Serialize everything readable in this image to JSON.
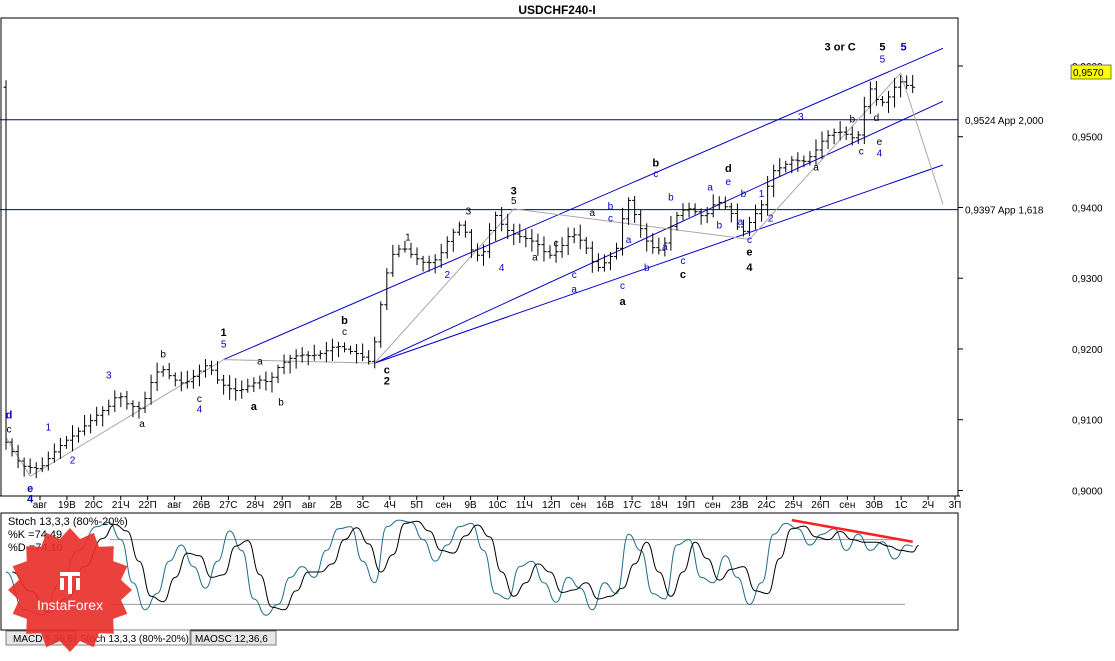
{
  "chart_data": [
    {
      "type": "candlestick",
      "title": "USDCHF240-I",
      "ylim": [
        0.8995,
        0.9665
      ],
      "y_ticks": [
        "0,9600",
        "0,9500",
        "0,9400",
        "0,9300",
        "0,9200",
        "0,9100",
        "0,9000"
      ],
      "y_tick_values": [
        0.96,
        0.95,
        0.94,
        0.93,
        0.92,
        0.91,
        0.9
      ],
      "x_ticks": [
        "авг",
        "19В",
        "20С",
        "21Ч",
        "22П",
        "авг",
        "26В",
        "27С",
        "28Ч",
        "29П",
        "авг",
        "2В",
        "3С",
        "4Ч",
        "5П",
        "сен",
        "9В",
        "10С",
        "11Ч",
        "12П",
        "сен",
        "16В",
        "17С",
        "18Ч",
        "19П",
        "сен",
        "23В",
        "24С",
        "25Ч",
        "26П",
        "сен",
        "30В",
        "1С",
        "2Ч",
        "3П"
      ],
      "x_tick_labels": [
        "авг",
        "19В",
        "20С",
        "21Ч",
        "22П",
        "авг",
        "26В",
        "27С",
        "28Ч",
        "29П",
        "авг",
        "2В",
        "3С",
        "4Ч",
        "5П",
        "сен",
        "9В",
        "10С",
        "11Ч",
        "12П",
        "сен",
        "16В",
        "17С",
        "18Ч",
        "19П",
        "сен",
        "23В",
        "24С",
        "25Ч",
        "26П",
        "сен",
        "30В",
        "1С",
        "2Ч",
        "3П"
      ],
      "current_price": "0,9570",
      "current_value": 0.957,
      "horizontal_levels": [
        {
          "value": 0.9524,
          "label": "0,9524 App 2,000"
        },
        {
          "value": 0.9397,
          "label": "0,9397 App 1,618"
        }
      ],
      "price_path": [
        [
          0,
          0.9075
        ],
        [
          3,
          0.9035
        ],
        [
          6,
          0.903
        ],
        [
          8,
          0.905
        ],
        [
          10,
          0.9068
        ],
        [
          12,
          0.908
        ],
        [
          14,
          0.9095
        ],
        [
          16,
          0.911
        ],
        [
          18,
          0.9122
        ],
        [
          19,
          0.914
        ],
        [
          20,
          0.9125
        ],
        [
          21,
          0.912
        ],
        [
          23,
          0.9115
        ],
        [
          24,
          0.9145
        ],
        [
          26,
          0.9175
        ],
        [
          28,
          0.9158
        ],
        [
          30,
          0.915
        ],
        [
          32,
          0.9165
        ],
        [
          34,
          0.918
        ],
        [
          35,
          0.916
        ],
        [
          37,
          0.9145
        ],
        [
          39,
          0.914
        ],
        [
          41,
          0.915
        ],
        [
          43,
          0.9158
        ],
        [
          44,
          0.915
        ],
        [
          45,
          0.917
        ],
        [
          47,
          0.9185
        ],
        [
          49,
          0.9192
        ],
        [
          51,
          0.919
        ],
        [
          53,
          0.9195
        ],
        [
          55,
          0.9205
        ],
        [
          57,
          0.9198
        ],
        [
          59,
          0.9192
        ],
        [
          60,
          0.9185
        ],
        [
          61,
          0.918
        ],
        [
          62,
          0.924
        ],
        [
          64,
          0.933
        ],
        [
          66,
          0.9345
        ],
        [
          68,
          0.933
        ],
        [
          70,
          0.932
        ],
        [
          72,
          0.9328
        ],
        [
          74,
          0.936
        ],
        [
          76,
          0.938
        ],
        [
          77,
          0.935
        ],
        [
          78,
          0.933
        ],
        [
          80,
          0.934
        ],
        [
          81,
          0.9395
        ],
        [
          83,
          0.937
        ],
        [
          85,
          0.936
        ],
        [
          87,
          0.9355
        ],
        [
          89,
          0.9345
        ],
        [
          90,
          0.933
        ],
        [
          92,
          0.934
        ],
        [
          94,
          0.9365
        ],
        [
          96,
          0.935
        ],
        [
          97,
          0.9335
        ],
        [
          98,
          0.9312
        ],
        [
          100,
          0.9325
        ],
        [
          102,
          0.9348
        ],
        [
          103,
          0.942
        ],
        [
          105,
          0.938
        ],
        [
          106,
          0.936
        ],
        [
          107,
          0.9345
        ],
        [
          109,
          0.9338
        ],
        [
          111,
          0.9385
        ],
        [
          113,
          0.94
        ],
        [
          115,
          0.9392
        ],
        [
          116,
          0.9385
        ],
        [
          118,
          0.941
        ],
        [
          120,
          0.9398
        ],
        [
          121,
          0.9385
        ],
        [
          122,
          0.936
        ],
        [
          124,
          0.9385
        ],
        [
          126,
          0.941
        ],
        [
          127,
          0.945
        ],
        [
          129,
          0.9458
        ],
        [
          131,
          0.947
        ],
        [
          132,
          0.9462
        ],
        [
          134,
          0.9475
        ],
        [
          136,
          0.95
        ],
        [
          138,
          0.9508
        ],
        [
          140,
          0.9502
        ],
        [
          141,
          0.9495
        ],
        [
          142,
          0.951
        ],
        [
          143,
          0.9575
        ],
        [
          145,
          0.9545
        ],
        [
          147,
          0.956
        ],
        [
          148,
          0.958
        ],
        [
          150,
          0.957
        ]
      ],
      "channels": [
        {
          "color": "#0000cc",
          "lines": [
            [
              [
                36,
                0.9185
              ],
              [
                155,
                0.9625
              ]
            ],
            [
              [
                61,
                0.918
              ],
              [
                155,
                0.955
              ]
            ],
            [
              [
                61,
                0.918
              ],
              [
                155,
                0.946
              ]
            ]
          ]
        }
      ],
      "wave_labels": [
        {
          "text": "d",
          "x": 0.5,
          "y": 0.9102,
          "color": "#0000cc",
          "bold": true
        },
        {
          "text": "c",
          "x": 0.5,
          "y": 0.9082,
          "color": "#000000"
        },
        {
          "text": "e",
          "x": 4,
          "y": 0.8998,
          "color": "#0000cc",
          "bold": true
        },
        {
          "text": "4",
          "x": 4,
          "y": 0.8983,
          "color": "#0000cc",
          "bold": true
        },
        {
          "text": "1",
          "x": 7,
          "y": 0.9085,
          "color": "#0000cc"
        },
        {
          "text": "2",
          "x": 11,
          "y": 0.9038,
          "color": "#0000cc"
        },
        {
          "text": "3",
          "x": 17,
          "y": 0.9158,
          "color": "#0000cc"
        },
        {
          "text": "a",
          "x": 22.5,
          "y": 0.909,
          "color": "#000000"
        },
        {
          "text": "b",
          "x": 26,
          "y": 0.9188,
          "color": "#000000"
        },
        {
          "text": "c",
          "x": 32,
          "y": 0.9125,
          "color": "#000000"
        },
        {
          "text": "4",
          "x": 32,
          "y": 0.911,
          "color": "#0000cc"
        },
        {
          "text": "1",
          "x": 36,
          "y": 0.9218,
          "color": "#000000",
          "bold": true
        },
        {
          "text": "5",
          "x": 36,
          "y": 0.9202,
          "color": "#0000cc"
        },
        {
          "text": "a",
          "x": 42,
          "y": 0.9178,
          "color": "#000000"
        },
        {
          "text": "a",
          "x": 41,
          "y": 0.9114,
          "color": "#000000",
          "bold": true
        },
        {
          "text": "b",
          "x": 45.5,
          "y": 0.912,
          "color": "#000000"
        },
        {
          "text": "b",
          "x": 56,
          "y": 0.9235,
          "color": "#000000",
          "bold": true
        },
        {
          "text": "c",
          "x": 56,
          "y": 0.922,
          "color": "#000000"
        },
        {
          "text": "c",
          "x": 63,
          "y": 0.9165,
          "color": "#000000",
          "bold": true
        },
        {
          "text": "2",
          "x": 63,
          "y": 0.915,
          "color": "#000000",
          "bold": true
        },
        {
          "text": "1",
          "x": 66.5,
          "y": 0.9353,
          "color": "#000000"
        },
        {
          "text": "2",
          "x": 73,
          "y": 0.93,
          "color": "#0000cc"
        },
        {
          "text": "3",
          "x": 76.5,
          "y": 0.939,
          "color": "#000000"
        },
        {
          "text": "4",
          "x": 82,
          "y": 0.931,
          "color": "#0000cc"
        },
        {
          "text": "3",
          "x": 84,
          "y": 0.9418,
          "color": "#000000",
          "bold": true
        },
        {
          "text": "5",
          "x": 84,
          "y": 0.9405,
          "color": "#000000"
        },
        {
          "text": "a",
          "x": 87.5,
          "y": 0.9325,
          "color": "#000000"
        },
        {
          "text": "c",
          "x": 91,
          "y": 0.9345,
          "color": "#000000"
        },
        {
          "text": "a",
          "x": 97,
          "y": 0.9388,
          "color": "#000000"
        },
        {
          "text": "c",
          "x": 94,
          "y": 0.93,
          "color": "#0000cc"
        },
        {
          "text": "a",
          "x": 94,
          "y": 0.928,
          "color": "#0000cc"
        },
        {
          "text": "b",
          "x": 100,
          "y": 0.9397,
          "color": "#0000cc"
        },
        {
          "text": "c",
          "x": 100,
          "y": 0.938,
          "color": "#0000cc"
        },
        {
          "text": "c",
          "x": 102,
          "y": 0.9285,
          "color": "#0000cc"
        },
        {
          "text": "a",
          "x": 102,
          "y": 0.9262,
          "color": "#000000",
          "bold": true
        },
        {
          "text": "a",
          "x": 103,
          "y": 0.935,
          "color": "#0000cc"
        },
        {
          "text": "b",
          "x": 106,
          "y": 0.931,
          "color": "#0000cc"
        },
        {
          "text": "b",
          "x": 107.5,
          "y": 0.9458,
          "color": "#000000",
          "bold": true
        },
        {
          "text": "c",
          "x": 107.5,
          "y": 0.9443,
          "color": "#0000cc"
        },
        {
          "text": "b",
          "x": 110,
          "y": 0.941,
          "color": "#0000cc"
        },
        {
          "text": "a",
          "x": 109,
          "y": 0.934,
          "color": "#0000cc"
        },
        {
          "text": "c",
          "x": 112,
          "y": 0.932,
          "color": "#0000cc"
        },
        {
          "text": "c",
          "x": 112,
          "y": 0.93,
          "color": "#000000",
          "bold": true
        },
        {
          "text": "a",
          "x": 116.5,
          "y": 0.9424,
          "color": "#0000cc"
        },
        {
          "text": "b",
          "x": 118,
          "y": 0.937,
          "color": "#0000cc"
        },
        {
          "text": "d",
          "x": 119.5,
          "y": 0.945,
          "color": "#000000",
          "bold": true
        },
        {
          "text": "e",
          "x": 119.5,
          "y": 0.9432,
          "color": "#0000cc"
        },
        {
          "text": "b",
          "x": 122,
          "y": 0.9415,
          "color": "#0000cc"
        },
        {
          "text": "a",
          "x": 121.5,
          "y": 0.9375,
          "color": "#0000cc"
        },
        {
          "text": "c",
          "x": 123,
          "y": 0.935,
          "color": "#0000cc"
        },
        {
          "text": "e",
          "x": 123,
          "y": 0.9332,
          "color": "#000000",
          "bold": true
        },
        {
          "text": "4",
          "x": 123,
          "y": 0.931,
          "color": "#000000",
          "bold": true
        },
        {
          "text": "1",
          "x": 125,
          "y": 0.9415,
          "color": "#0000cc"
        },
        {
          "text": "2",
          "x": 126.5,
          "y": 0.938,
          "color": "#0000cc"
        },
        {
          "text": "3",
          "x": 131.5,
          "y": 0.9524,
          "color": "#0000cc"
        },
        {
          "text": "a",
          "x": 134,
          "y": 0.9452,
          "color": "#000000"
        },
        {
          "text": "b",
          "x": 140,
          "y": 0.952,
          "color": "#000000"
        },
        {
          "text": "c",
          "x": 141.5,
          "y": 0.9475,
          "color": "#000000"
        },
        {
          "text": "d",
          "x": 144,
          "y": 0.9522,
          "color": "#000000"
        },
        {
          "text": "e",
          "x": 144.5,
          "y": 0.9488,
          "color": "#000000"
        },
        {
          "text": "4",
          "x": 144.5,
          "y": 0.9472,
          "color": "#0000cc"
        },
        {
          "text": "3 or C",
          "x": 138,
          "y": 0.9622,
          "color": "#000000",
          "bold": true
        },
        {
          "text": "5",
          "x": 145,
          "y": 0.9622,
          "color": "#000000",
          "bold": true
        },
        {
          "text": "5",
          "x": 145,
          "y": 0.9605,
          "color": "#0000cc"
        },
        {
          "text": "5",
          "x": 148.5,
          "y": 0.9622,
          "color": "#0000cc",
          "bold": true
        }
      ]
    },
    {
      "type": "line",
      "title": "Stoch 13,3,3 (80%-20%)",
      "legend": [
        "%K =74,49",
        "%D =74,10"
      ],
      "ylim": [
        0,
        100
      ],
      "levels": [
        80,
        20
      ],
      "k_path": [
        [
          0,
          50
        ],
        [
          3,
          15
        ],
        [
          6,
          10
        ],
        [
          9,
          40
        ],
        [
          12,
          70
        ],
        [
          15,
          92
        ],
        [
          17,
          96
        ],
        [
          19,
          80
        ],
        [
          21,
          40
        ],
        [
          23,
          15
        ],
        [
          25,
          30
        ],
        [
          27,
          60
        ],
        [
          29,
          75
        ],
        [
          31,
          55
        ],
        [
          33,
          35
        ],
        [
          35,
          60
        ],
        [
          37,
          88
        ],
        [
          39,
          70
        ],
        [
          41,
          25
        ],
        [
          43,
          10
        ],
        [
          45,
          20
        ],
        [
          47,
          45
        ],
        [
          49,
          55
        ],
        [
          51,
          45
        ],
        [
          53,
          70
        ],
        [
          55,
          90
        ],
        [
          57,
          92
        ],
        [
          59,
          60
        ],
        [
          61,
          40
        ],
        [
          63,
          92
        ],
        [
          65,
          98
        ],
        [
          67,
          96
        ],
        [
          69,
          80
        ],
        [
          71,
          60
        ],
        [
          73,
          75
        ],
        [
          75,
          92
        ],
        [
          77,
          95
        ],
        [
          79,
          70
        ],
        [
          81,
          30
        ],
        [
          83,
          25
        ],
        [
          85,
          55
        ],
        [
          87,
          60
        ],
        [
          89,
          40
        ],
        [
          91,
          22
        ],
        [
          93,
          45
        ],
        [
          95,
          35
        ],
        [
          97,
          15
        ],
        [
          99,
          40
        ],
        [
          101,
          30
        ],
        [
          103,
          85
        ],
        [
          105,
          70
        ],
        [
          107,
          30
        ],
        [
          109,
          25
        ],
        [
          111,
          75
        ],
        [
          113,
          80
        ],
        [
          115,
          45
        ],
        [
          117,
          40
        ],
        [
          119,
          65
        ],
        [
          121,
          45
        ],
        [
          123,
          20
        ],
        [
          125,
          40
        ],
        [
          127,
          85
        ],
        [
          129,
          95
        ],
        [
          131,
          90
        ],
        [
          133,
          75
        ],
        [
          135,
          85
        ],
        [
          137,
          90
        ],
        [
          139,
          70
        ],
        [
          141,
          85
        ],
        [
          143,
          70
        ],
        [
          145,
          78
        ],
        [
          147,
          62
        ],
        [
          149,
          75
        ],
        [
          150,
          74
        ]
      ],
      "trend_line": {
        "color": "#ff2020",
        "from": [
          130,
          98
        ],
        "to": [
          150,
          78
        ]
      },
      "tabs": [
        "MACD 5,36,6",
        "Stoch 13,3,3 (80%-20%)",
        "MAOSC 12,36,6"
      ],
      "active_tab": "Stoch 13,3,3 (80%-20%)"
    }
  ],
  "watermark": {
    "brand": "InstaForex"
  }
}
